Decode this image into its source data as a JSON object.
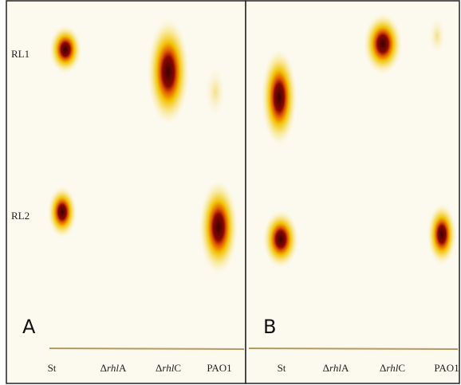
{
  "panels": [
    {
      "letter": "A",
      "rows": [
        "RL1",
        "RL2"
      ],
      "lanes": [
        {
          "prefix": "St"
        },
        {
          "prefix": "Δ",
          "italic": "rhl",
          "suffix": "A"
        },
        {
          "prefix": "Δ",
          "italic": "rhl",
          "suffix": "C"
        },
        {
          "prefix": "PAO1"
        }
      ]
    },
    {
      "letter": "B",
      "lanes": [
        {
          "prefix": "St"
        },
        {
          "prefix": "Δ",
          "italic": "rhl",
          "suffix": "A"
        },
        {
          "prefix": "Δ",
          "italic": "rhl",
          "suffix": "C"
        },
        {
          "prefix": "PAO1"
        }
      ]
    }
  ]
}
